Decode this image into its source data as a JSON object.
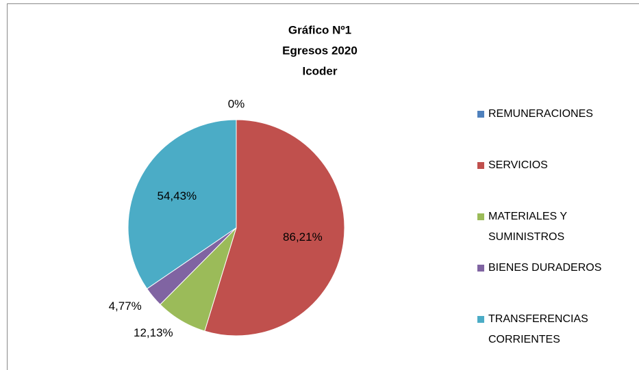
{
  "chart_data": {
    "type": "pie",
    "title": [
      "Gráfico Nº1",
      "Egresos 2020",
      "Icoder"
    ],
    "categories": [
      "REMUNERACIONES",
      "SERVICIOS",
      "MATERIALES Y SUMINISTROS",
      "BIENES DURADEROS",
      "TRANSFERENCIAS CORRIENTES"
    ],
    "values": [
      0,
      86.21,
      12.13,
      4.77,
      54.43
    ],
    "value_labels": [
      "0%",
      "86,21%",
      "12,13%",
      "4,77%",
      "54,43%"
    ],
    "colors": [
      "#4f81bd",
      "#c0504d",
      "#9bbb59",
      "#8064a2",
      "#4bacc6"
    ],
    "legend": "right"
  }
}
